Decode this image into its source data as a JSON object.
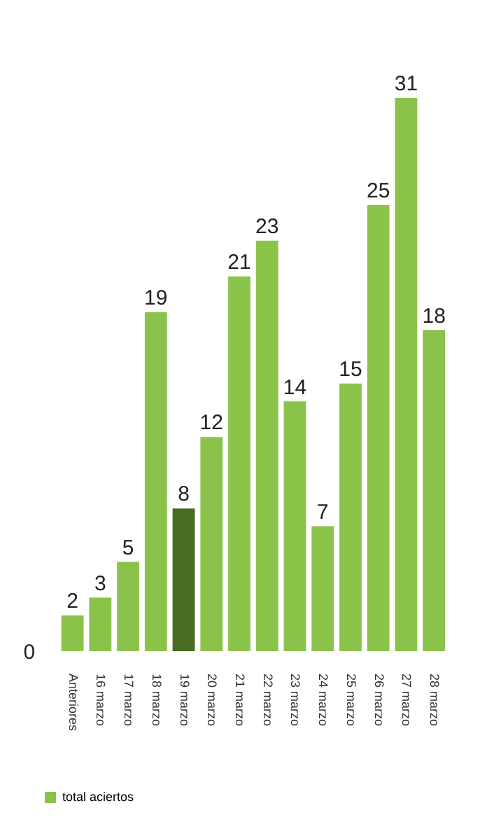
{
  "chart_data": {
    "type": "bar",
    "categories": [
      null,
      "Anteriores",
      "16 marzo",
      "17 marzo",
      "18 marzo",
      "19 marzo",
      "20 marzo",
      "21 marzo",
      "22 marzo",
      "23 marzo",
      "24 marzo",
      "25 marzo",
      "26 marzo",
      "27 marzo",
      "28 marzo"
    ],
    "series": [
      {
        "name": "total aciertos",
        "color": "#8bc34a",
        "colors": [
          "#8bc34a",
          "#8bc34a",
          "#8bc34a",
          "#8bc34a",
          "#8bc34a",
          "#4a6b24",
          "#8bc34a",
          "#8bc34a",
          "#8bc34a",
          "#8bc34a",
          "#8bc34a",
          "#8bc34a",
          "#8bc34a",
          "#8bc34a",
          "#8bc34a"
        ],
        "values": [
          0,
          2,
          3,
          5,
          19,
          8,
          12,
          21,
          23,
          14,
          7,
          15,
          25,
          31,
          18
        ]
      }
    ],
    "data_labels": true,
    "grid": false,
    "legend": "bottom left",
    "tick_labels": "x"
  }
}
